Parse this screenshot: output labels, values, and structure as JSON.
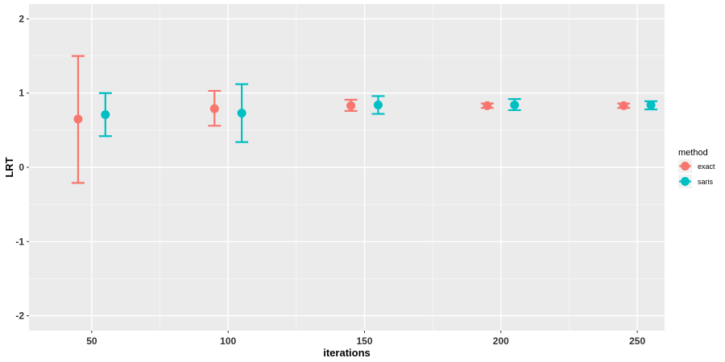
{
  "chart_data": {
    "type": "scatter",
    "subtype": "point-with-errorbars",
    "xlabel": "iterations",
    "ylabel": "LRT",
    "x_ticks": [
      50,
      100,
      150,
      200,
      250
    ],
    "y_ticks": [
      -2,
      -1,
      0,
      1,
      2
    ],
    "xlim": [
      27,
      260
    ],
    "ylim": [
      -2.2,
      2.2
    ],
    "dodge": 5,
    "grid": true,
    "legend": {
      "title": "method",
      "position": "right"
    },
    "series": [
      {
        "name": "exact",
        "color": "#F8766D",
        "x": [
          50,
          100,
          150,
          200,
          250
        ],
        "y": [
          0.65,
          0.79,
          0.83,
          0.83,
          0.83
        ],
        "ymin": [
          -0.21,
          0.56,
          0.76,
          0.8,
          0.8
        ],
        "ymax": [
          1.5,
          1.03,
          0.91,
          0.86,
          0.86
        ]
      },
      {
        "name": "saris",
        "color": "#00BFC4",
        "x": [
          50,
          100,
          150,
          200,
          250
        ],
        "y": [
          0.71,
          0.73,
          0.84,
          0.84,
          0.84
        ],
        "ymin": [
          0.42,
          0.34,
          0.72,
          0.77,
          0.78
        ],
        "ymax": [
          1.0,
          1.12,
          0.96,
          0.92,
          0.89
        ]
      }
    ]
  }
}
